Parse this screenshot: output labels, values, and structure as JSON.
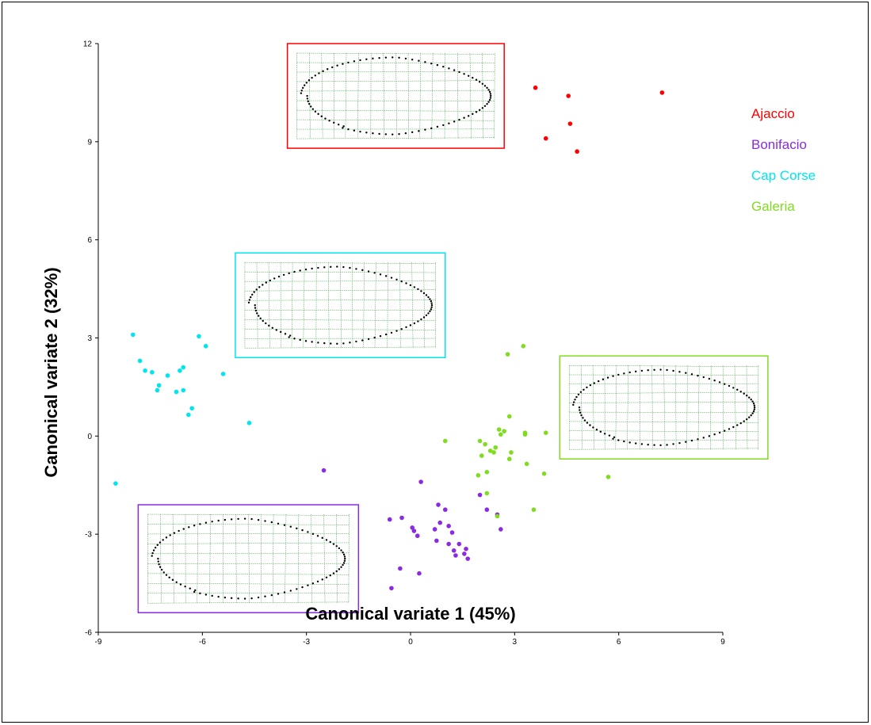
{
  "chart_data": {
    "type": "scatter",
    "title": "",
    "xlabel": "Canonical variate 1 (45%)",
    "ylabel": "Canonical variate 2 (32%)",
    "xlim": [
      -9,
      9
    ],
    "ylim": [
      -6,
      12
    ],
    "xticks": [
      -9,
      -6,
      -3,
      0,
      3,
      6,
      9
    ],
    "yticks": [
      -6,
      -3,
      0,
      3,
      6,
      9,
      12
    ],
    "grid": false,
    "legend_position": "top-right",
    "series": [
      {
        "name": "Ajaccio",
        "color": "#ff0000",
        "points": [
          [
            3.6,
            10.65
          ],
          [
            4.55,
            10.4
          ],
          [
            7.25,
            10.5
          ],
          [
            4.6,
            9.55
          ],
          [
            3.9,
            9.1
          ],
          [
            4.8,
            8.7
          ]
        ]
      },
      {
        "name": "Bonifacio",
        "color": "#8a2be2",
        "points": [
          [
            -2.5,
            -1.05
          ],
          [
            0.3,
            -1.4
          ],
          [
            -0.6,
            -2.55
          ],
          [
            -0.25,
            -2.5
          ],
          [
            0.05,
            -2.8
          ],
          [
            0.1,
            -2.9
          ],
          [
            0.2,
            -3.05
          ],
          [
            0.7,
            -2.85
          ],
          [
            0.75,
            -3.2
          ],
          [
            0.8,
            -2.1
          ],
          [
            0.85,
            -2.65
          ],
          [
            1.0,
            -2.25
          ],
          [
            1.1,
            -2.75
          ],
          [
            1.1,
            -3.3
          ],
          [
            1.2,
            -2.95
          ],
          [
            1.25,
            -3.5
          ],
          [
            1.3,
            -3.65
          ],
          [
            1.4,
            -3.3
          ],
          [
            1.55,
            -3.6
          ],
          [
            1.6,
            -3.45
          ],
          [
            1.65,
            -3.75
          ],
          [
            2.0,
            -1.8
          ],
          [
            2.2,
            -2.25
          ],
          [
            2.5,
            -2.4
          ],
          [
            2.6,
            -2.85
          ],
          [
            -0.3,
            -4.05
          ],
          [
            0.25,
            -4.2
          ],
          [
            -0.55,
            -4.65
          ]
        ]
      },
      {
        "name": "Cap Corse",
        "color": "#00e5ee",
        "points": [
          [
            -8.0,
            3.1
          ],
          [
            -7.8,
            2.3
          ],
          [
            -7.65,
            2.0
          ],
          [
            -7.45,
            1.95
          ],
          [
            -7.3,
            1.4
          ],
          [
            -7.25,
            1.55
          ],
          [
            -7.0,
            1.85
          ],
          [
            -6.75,
            1.35
          ],
          [
            -6.65,
            2.0
          ],
          [
            -6.55,
            2.1
          ],
          [
            -6.55,
            1.4
          ],
          [
            -6.4,
            0.65
          ],
          [
            -6.3,
            0.85
          ],
          [
            -6.1,
            3.05
          ],
          [
            -5.9,
            2.75
          ],
          [
            -5.4,
            1.9
          ],
          [
            -4.65,
            0.4
          ],
          [
            -8.5,
            -1.45
          ]
        ]
      },
      {
        "name": "Galeria",
        "color": "#7fdc1f",
        "points": [
          [
            1.0,
            -0.15
          ],
          [
            2.0,
            -0.15
          ],
          [
            2.05,
            -0.6
          ],
          [
            2.15,
            -0.25
          ],
          [
            1.95,
            -1.2
          ],
          [
            2.2,
            -1.1
          ],
          [
            2.3,
            -0.45
          ],
          [
            2.4,
            -0.5
          ],
          [
            2.45,
            -0.35
          ],
          [
            2.55,
            0.2
          ],
          [
            2.6,
            0.05
          ],
          [
            2.7,
            0.15
          ],
          [
            2.8,
            2.5
          ],
          [
            2.85,
            0.6
          ],
          [
            2.9,
            -0.5
          ],
          [
            2.85,
            -0.7
          ],
          [
            3.25,
            2.75
          ],
          [
            3.3,
            0.05
          ],
          [
            3.3,
            0.1
          ],
          [
            3.35,
            -0.85
          ],
          [
            3.9,
            0.1
          ],
          [
            3.85,
            -1.15
          ],
          [
            2.2,
            -1.75
          ],
          [
            2.5,
            -2.45
          ],
          [
            3.55,
            -2.25
          ],
          [
            5.7,
            -1.25
          ]
        ]
      }
    ],
    "insets": [
      {
        "name": "Ajaccio",
        "color": "#ff0000",
        "x_range": [
          -3.55,
          2.7
        ],
        "y_range": [
          8.8,
          12.0
        ]
      },
      {
        "name": "Cap Corse",
        "color": "#00e5ee",
        "x_range": [
          -5.05,
          1.0
        ],
        "y_range": [
          2.4,
          5.6
        ]
      },
      {
        "name": "Galeria",
        "color": "#7fdc1f",
        "x_range": [
          4.3,
          10.3
        ],
        "y_range": [
          -0.7,
          2.45
        ]
      },
      {
        "name": "Bonifacio",
        "color": "#8a2be2",
        "x_range": [
          -7.85,
          -1.5
        ],
        "y_range": [
          -5.4,
          -2.1
        ]
      }
    ]
  }
}
